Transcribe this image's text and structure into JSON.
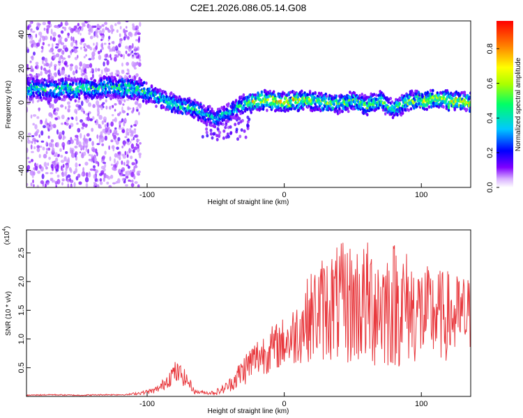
{
  "chart_data": [
    {
      "type": "heatmap",
      "title": "C2E1.2026.086.05.14.G08",
      "xlabel": "Height of straight line (km)",
      "ylabel": "Frequency (Hz)",
      "xlim": [
        -188,
        136
      ],
      "ylim": [
        -50,
        48
      ],
      "xticks": [
        "-100",
        "0",
        "100"
      ],
      "yticks": [
        "40",
        "20",
        "0",
        "-20",
        "-40"
      ],
      "colorbar": {
        "label": "Normalized spectral amplitude",
        "ticks": [
          "0.0",
          "0.2",
          "0.4",
          "0.6",
          "0.8"
        ],
        "range": [
          0,
          0.96
        ]
      },
      "ridge": {
        "x": [
          -188,
          -170,
          -150,
          -130,
          -120,
          -110,
          -100,
          -90,
          -80,
          -70,
          -60,
          -50,
          -40,
          -35,
          -30,
          -20,
          -10,
          0,
          10,
          20,
          30,
          40,
          50,
          60,
          70,
          80,
          90,
          100,
          110,
          120,
          136
        ],
        "freq": [
          8,
          8,
          8,
          9,
          9,
          8,
          6,
          2,
          -1,
          -3,
          -6,
          -10,
          -6,
          -4,
          -1,
          1,
          1,
          0,
          1,
          1,
          0,
          -1,
          1,
          -2,
          1,
          -4,
          1,
          1,
          2,
          1,
          0
        ],
        "amp": [
          0.45,
          0.5,
          0.5,
          0.5,
          0.5,
          0.55,
          0.45,
          0.45,
          0.5,
          0.5,
          0.45,
          0.4,
          0.4,
          0.45,
          0.55,
          0.75,
          0.8,
          0.75,
          0.7,
          0.65,
          0.6,
          0.55,
          0.6,
          0.55,
          0.6,
          0.5,
          0.6,
          0.65,
          0.7,
          0.75,
          0.7
        ]
      }
    },
    {
      "type": "line",
      "xlabel": "Height of straight line (km)",
      "ylabel": "SNR (10 * v/v)",
      "yscale_label": "(x10",
      "yscale_exp": "4",
      "xlim": [
        -188,
        136
      ],
      "ylim": [
        0,
        2.9
      ],
      "xticks": [
        "-100",
        "0",
        "100"
      ],
      "yticks": [
        "0.5",
        "1.0",
        "1.5",
        "2.0",
        "2.5"
      ],
      "series": [
        {
          "name": "SNR",
          "color": "#e8383d",
          "x": [
            -188,
            -170,
            -150,
            -130,
            -115,
            -105,
            -95,
            -90,
            -85,
            -80,
            -75,
            -70,
            -65,
            -60,
            -55,
            -50,
            -45,
            -40,
            -35,
            -30,
            -25,
            -20,
            -15,
            -10,
            -5,
            0,
            5,
            10,
            15,
            20,
            25,
            30,
            35,
            40,
            45,
            50,
            55,
            60,
            65,
            70,
            75,
            80,
            85,
            90,
            95,
            100,
            105,
            110,
            115,
            120,
            125,
            130,
            136
          ],
          "envelope": [
            0.02,
            0.03,
            0.02,
            0.03,
            0.03,
            0.06,
            0.1,
            0.16,
            0.3,
            0.42,
            0.38,
            0.25,
            0.08,
            0.07,
            0.06,
            0.07,
            0.12,
            0.2,
            0.32,
            0.45,
            0.58,
            0.68,
            0.75,
            0.82,
            0.88,
            0.95,
            1.0,
            1.15,
            1.3,
            1.4,
            1.5,
            1.55,
            1.6,
            1.6,
            1.62,
            1.6,
            1.62,
            1.6,
            1.65,
            1.6,
            1.58,
            1.62,
            1.6,
            1.55,
            1.5,
            1.45,
            1.42,
            1.45,
            1.4,
            1.4,
            1.38,
            1.4,
            1.4
          ],
          "spread": [
            0.01,
            0.01,
            0.01,
            0.01,
            0.01,
            0.03,
            0.05,
            0.08,
            0.15,
            0.2,
            0.18,
            0.12,
            0.04,
            0.03,
            0.03,
            0.05,
            0.08,
            0.12,
            0.2,
            0.28,
            0.32,
            0.35,
            0.38,
            0.4,
            0.42,
            0.45,
            0.5,
            0.6,
            0.7,
            0.8,
            0.9,
            0.95,
            1.0,
            1.05,
            1.1,
            1.1,
            1.1,
            1.1,
            1.2,
            1.15,
            1.1,
            1.15,
            1.1,
            1.0,
            0.95,
            0.9,
            0.85,
            0.85,
            0.8,
            0.8,
            0.75,
            0.75,
            0.7
          ]
        }
      ]
    }
  ]
}
